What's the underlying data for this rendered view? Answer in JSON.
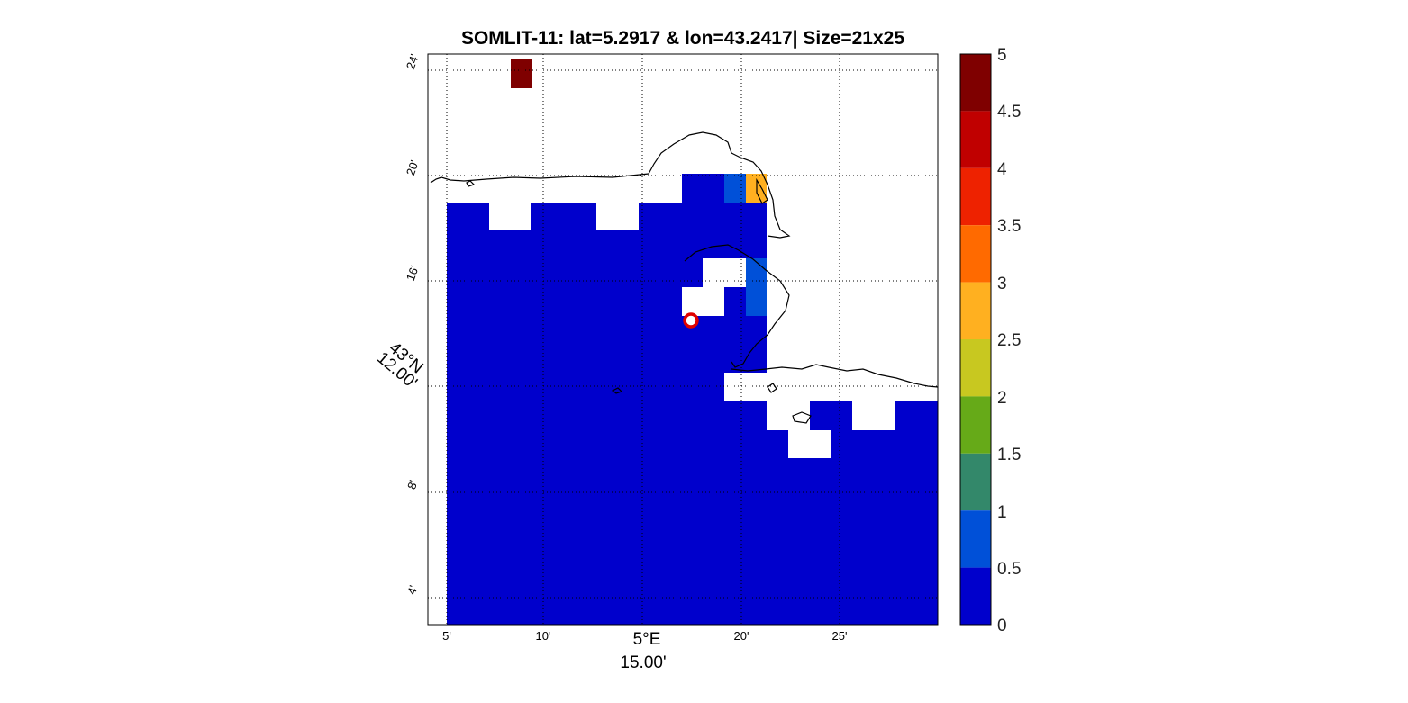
{
  "map": {
    "title": "SOMLIT-11: lat=5.2917 & lon=43.2417| Size=21x25",
    "lon_ticks": [
      "5'",
      "10'",
      "20'",
      "25'"
    ],
    "lon_main_label_deg": "5°E",
    "lon_main_label_min": "15.00'",
    "lat_ticks": [
      "24'",
      "20'",
      "16'",
      "8'",
      "4'"
    ],
    "lat_main_label_deg": "43°N",
    "lat_main_label_min": "12.00'",
    "colorbar_ticks": [
      "5",
      "4.5",
      "4",
      "3.5",
      "3",
      "2.5",
      "2",
      "1.5",
      "1",
      "0.5",
      "0"
    ],
    "colorbar_colors": [
      "#7f0000",
      "#c00000",
      "#ee2200",
      "#ff6a00",
      "#ffb020",
      "#c8c820",
      "#66aa18",
      "#33886a",
      "#0050d8",
      "#0000cc"
    ],
    "station_marker": "station-circle"
  },
  "chart_data": {
    "type": "heatmap",
    "title": "SOMLIT-11: lat=5.2917 & lon=43.2417| Size=21x25",
    "station": {
      "lat": 5.2917,
      "lon": 43.2417
    },
    "grid_size": "21x25",
    "color_range": [
      0,
      5
    ],
    "colorbar_ticks": [
      0,
      0.5,
      1,
      1.5,
      2,
      2.5,
      3,
      3.5,
      4,
      4.5,
      5
    ],
    "legend_placement": "right",
    "grid": "dotted",
    "cells_note": "Mostly 0-0.5 (dark blue) over the sea; one cell ~5 near top-left; one cell ~2.8 and cells ~0.5-1 near the coast at ~20' east; land/no-data blank."
  }
}
